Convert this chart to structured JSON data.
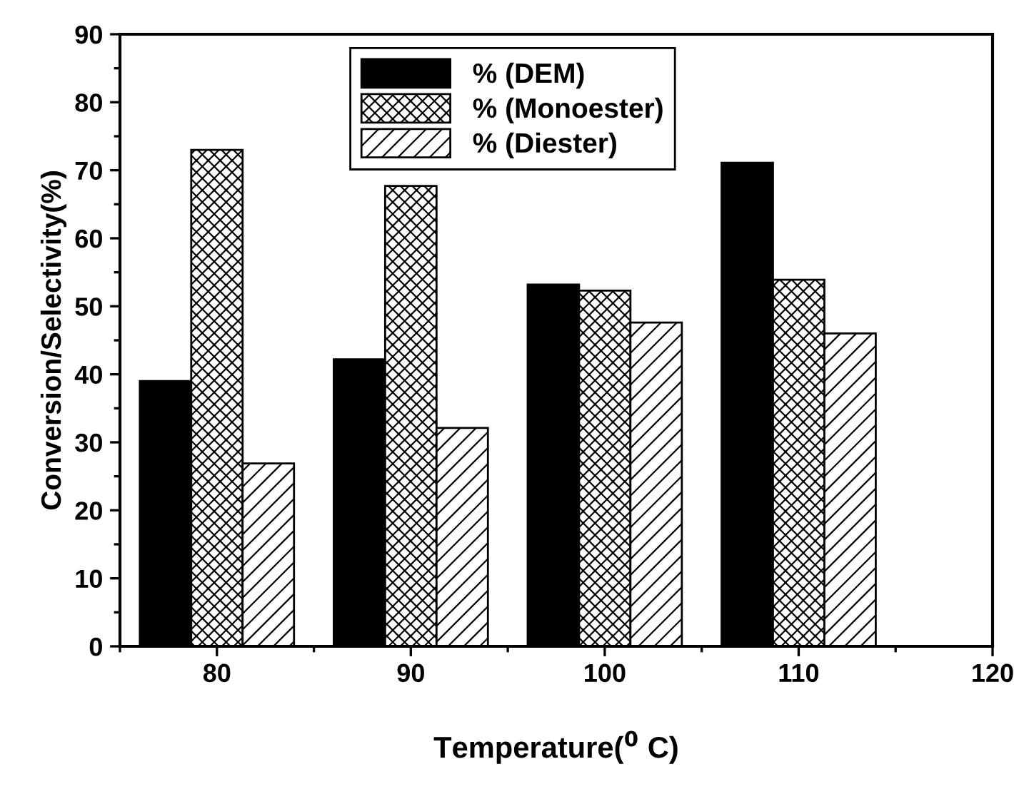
{
  "chart_data": {
    "type": "bar",
    "xlabel": "Temperature($^{0}$ C)",
    "ylabel": "Conversion/Selectivity(%)",
    "x": [
      80,
      90,
      100,
      110
    ],
    "series": [
      {
        "name": "% (DEM)",
        "color": "#000000",
        "values": [
          39.0,
          42.2,
          53.2,
          71.1
        ]
      },
      {
        "name": "% (Monoester)",
        "color": "#000000",
        "values": [
          73.0,
          67.7,
          52.3,
          53.9
        ]
      },
      {
        "name": "% (Diester)",
        "color": "#000000",
        "values": [
          26.9,
          32.1,
          47.6,
          46.0
        ]
      }
    ],
    "xlim": [
      75,
      120
    ],
    "xticks": [
      80,
      90,
      100,
      110,
      120
    ],
    "ylim": [
      0,
      90
    ],
    "yticks": [
      0,
      10,
      20,
      30,
      40,
      50,
      60,
      70,
      80,
      90
    ],
    "grid": false,
    "legend": "top"
  }
}
